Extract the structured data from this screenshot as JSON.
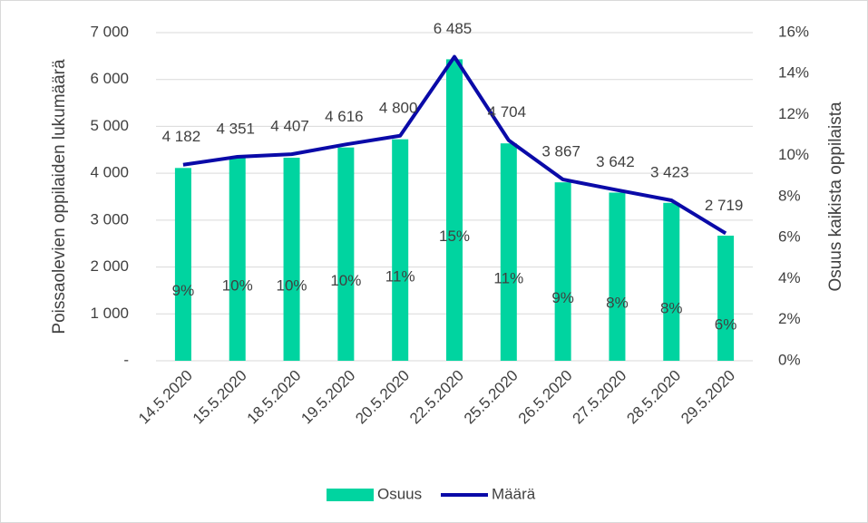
{
  "chart_data": {
    "type": "bar-line",
    "y_label": "Poissaolevien oppilaiden lukumäärä",
    "y2_label": "Osuus kaikista oppilaista",
    "categories": [
      "14.5.2020",
      "15.5.2020",
      "18.5.2020",
      "19.5.2020",
      "20.5.2020",
      "22.5.2020",
      "25.5.2020",
      "26.5.2020",
      "27.5.2020",
      "28.5.2020",
      "29.5.2020"
    ],
    "series": [
      {
        "name": "Osuus",
        "type": "bar",
        "axis": "y2",
        "color": "#00d4a0",
        "values": [
          9.4,
          9.9,
          9.9,
          10.4,
          10.8,
          14.7,
          10.6,
          8.7,
          8.2,
          7.7,
          6.1
        ],
        "value_labels": [
          "9%",
          "10%",
          "10%",
          "10%",
          "11%",
          "15%",
          "11%",
          "9%",
          "8%",
          "8%",
          "6%"
        ]
      },
      {
        "name": "Määrä",
        "type": "line",
        "color": "#0a0aa8",
        "values": [
          4182,
          4351,
          4407,
          4616,
          4800,
          6485,
          4704,
          3867,
          3642,
          3423,
          2719
        ],
        "value_labels": [
          "4 182",
          "4 351",
          "4 407",
          "4 616",
          "4 800",
          "6 485",
          "4 704",
          "3 867",
          "3 642",
          "3 423",
          "2 719"
        ]
      }
    ],
    "ylim": [
      0,
      7000
    ],
    "yticks": [
      {
        "value": 0,
        "label": "-"
      },
      {
        "value": 1000,
        "label": "1 000"
      },
      {
        "value": 2000,
        "label": "2 000"
      },
      {
        "value": 3000,
        "label": "3 000"
      },
      {
        "value": 4000,
        "label": "4 000"
      },
      {
        "value": 5000,
        "label": "5 000"
      },
      {
        "value": 6000,
        "label": "6 000"
      },
      {
        "value": 7000,
        "label": "7 000"
      }
    ],
    "y2lim": [
      0,
      16
    ],
    "y2ticks": [
      {
        "value": 0,
        "label": "0%"
      },
      {
        "value": 2,
        "label": "2%"
      },
      {
        "value": 4,
        "label": "4%"
      },
      {
        "value": 6,
        "label": "6%"
      },
      {
        "value": 8,
        "label": "8%"
      },
      {
        "value": 10,
        "label": "10%"
      },
      {
        "value": 12,
        "label": "12%"
      },
      {
        "value": 14,
        "label": "14%"
      },
      {
        "value": 16,
        "label": "16%"
      }
    ],
    "legend": "bottom"
  }
}
